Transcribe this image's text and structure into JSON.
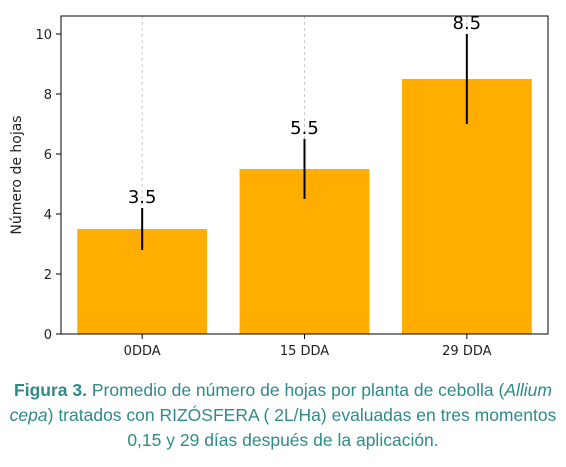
{
  "chart_data": {
    "type": "bar",
    "categories": [
      "0DDA",
      "15 DDA",
      "29 DDA"
    ],
    "values": [
      3.5,
      5.5,
      8.5
    ],
    "error_low": [
      2.8,
      4.5,
      7.0
    ],
    "error_high": [
      4.2,
      6.5,
      10.0
    ],
    "data_labels": [
      "3.5",
      "5.5",
      "8.5"
    ],
    "ylabel": "Número de hojas",
    "xlabel": "",
    "title": "",
    "ylim": [
      0,
      10.6
    ],
    "yticks": [
      0,
      2,
      4,
      6,
      8,
      10
    ],
    "bar_color": "#ffad00",
    "errorbar_color": "#000000",
    "grid": "vertical dashed at category centers"
  },
  "caption": {
    "label": "Figura 3.",
    "text_before_species": " Promedio de número de hojas por planta de cebolla (",
    "species": "Allium cepa",
    "text_after_species": ")  tratados con RIZÓSFERA ( 2L/Ha)  evaluadas en tres momentos 0,15 y 29 días después de la aplicación.",
    "color": "#2f8a8a"
  }
}
